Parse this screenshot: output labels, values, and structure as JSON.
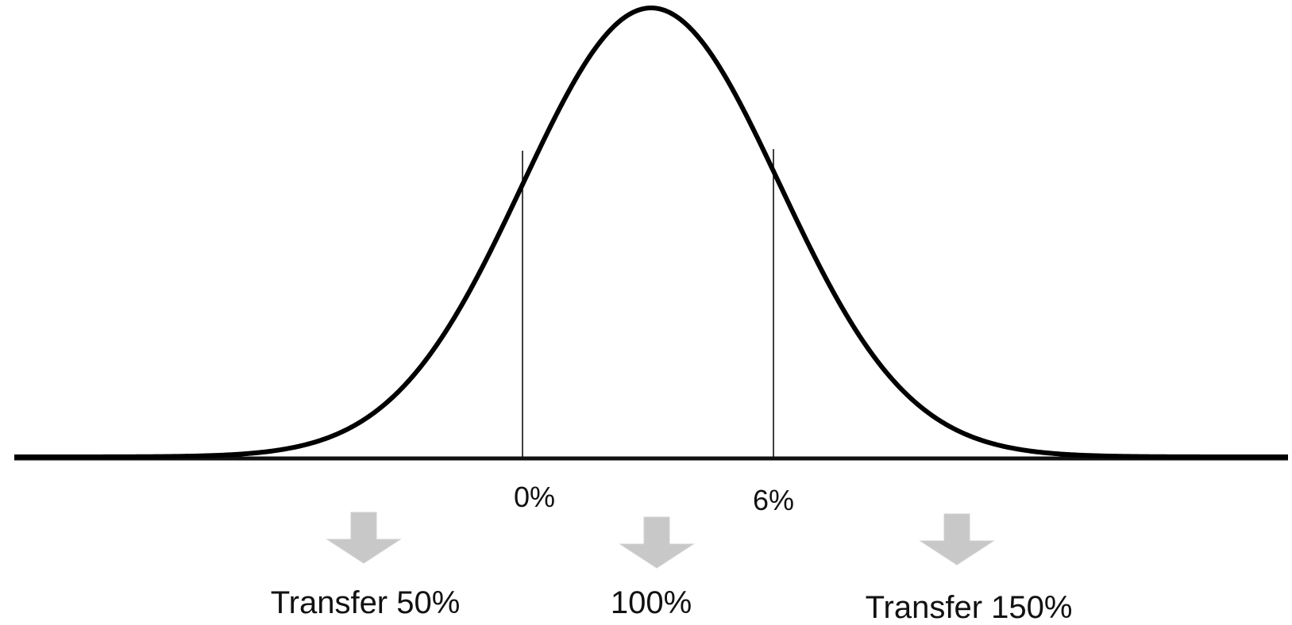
{
  "thresholds": [
    {
      "id": "low",
      "label": "0%"
    },
    {
      "id": "high",
      "label": "6%"
    }
  ],
  "outcomes": [
    {
      "id": "left",
      "label": "Transfer 50%"
    },
    {
      "id": "middle",
      "label": "100%"
    },
    {
      "id": "right",
      "label": "Transfer 150%"
    }
  ],
  "colors": {
    "curve": "#000000",
    "baseline": "#111111",
    "threshold_line": "#000000",
    "arrow_fill": "#c8c8c8",
    "arrow_stroke": "#d0d0d0"
  },
  "icons": {
    "outcome_arrow": "arrow-down-icon"
  }
}
